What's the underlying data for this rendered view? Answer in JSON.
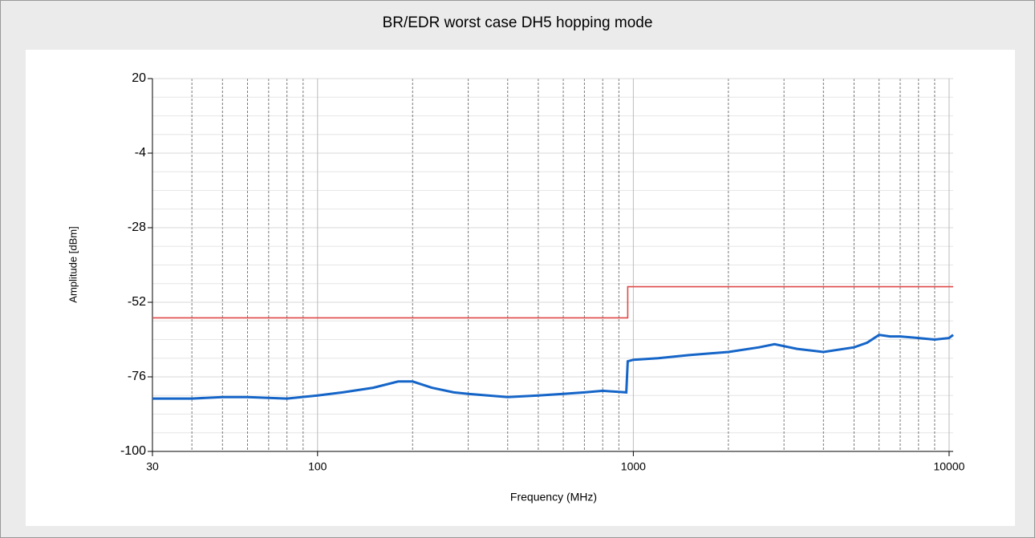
{
  "chart_data": {
    "type": "line",
    "title": "BR/EDR worst case DH5 hopping mode",
    "x_label": "Frequency (MHz)",
    "y_label": "Amplitude [dBm]",
    "xscale": "log",
    "xlim": [
      30,
      10300
    ],
    "ylim": [
      -100,
      20
    ],
    "xticks": [
      30,
      100,
      1000,
      10000
    ],
    "yticks": [
      20,
      -4,
      -28,
      -52,
      -76,
      -100
    ],
    "minor_xticks": [
      40,
      50,
      60,
      70,
      80,
      90,
      200,
      300,
      400,
      500,
      600,
      700,
      800,
      900,
      2000,
      3000,
      4000,
      5000,
      6000,
      7000,
      8000,
      9000
    ],
    "minor_yticks": [
      14,
      8,
      2,
      -10,
      -16,
      -22,
      -34,
      -40,
      -46,
      -58,
      -64,
      -70,
      -82,
      -88,
      -94
    ],
    "grid": true,
    "series": [
      {
        "color": "#1565c8",
        "x": [
          30,
          40,
          50,
          60,
          80,
          100,
          120,
          150,
          180,
          200,
          230,
          270,
          300,
          400,
          500,
          600,
          700,
          800,
          950,
          960,
          1000,
          1200,
          1500,
          2000,
          2500,
          2800,
          3300,
          4000,
          5000,
          5500,
          6000,
          6500,
          7000,
          8000,
          9000,
          10000,
          10300
        ],
        "values": [
          -83,
          -83,
          -82.5,
          -82.5,
          -83,
          -82,
          -81,
          -79.5,
          -77.5,
          -77.5,
          -79.5,
          -81,
          -81.5,
          -82.5,
          -82,
          -81.5,
          -81,
          -80.5,
          -81,
          -71,
          -70.5,
          -70,
          -69,
          -68,
          -66.5,
          -65.5,
          -67,
          -68,
          -66.5,
          -65,
          -62.5,
          -63,
          -63,
          -63.5,
          -64,
          -63.5,
          -62.5
        ]
      },
      {
        "color": "#e04848",
        "x": [
          30,
          960,
          960,
          10300
        ],
        "values": [
          -57,
          -57,
          -47,
          -47
        ]
      }
    ]
  }
}
